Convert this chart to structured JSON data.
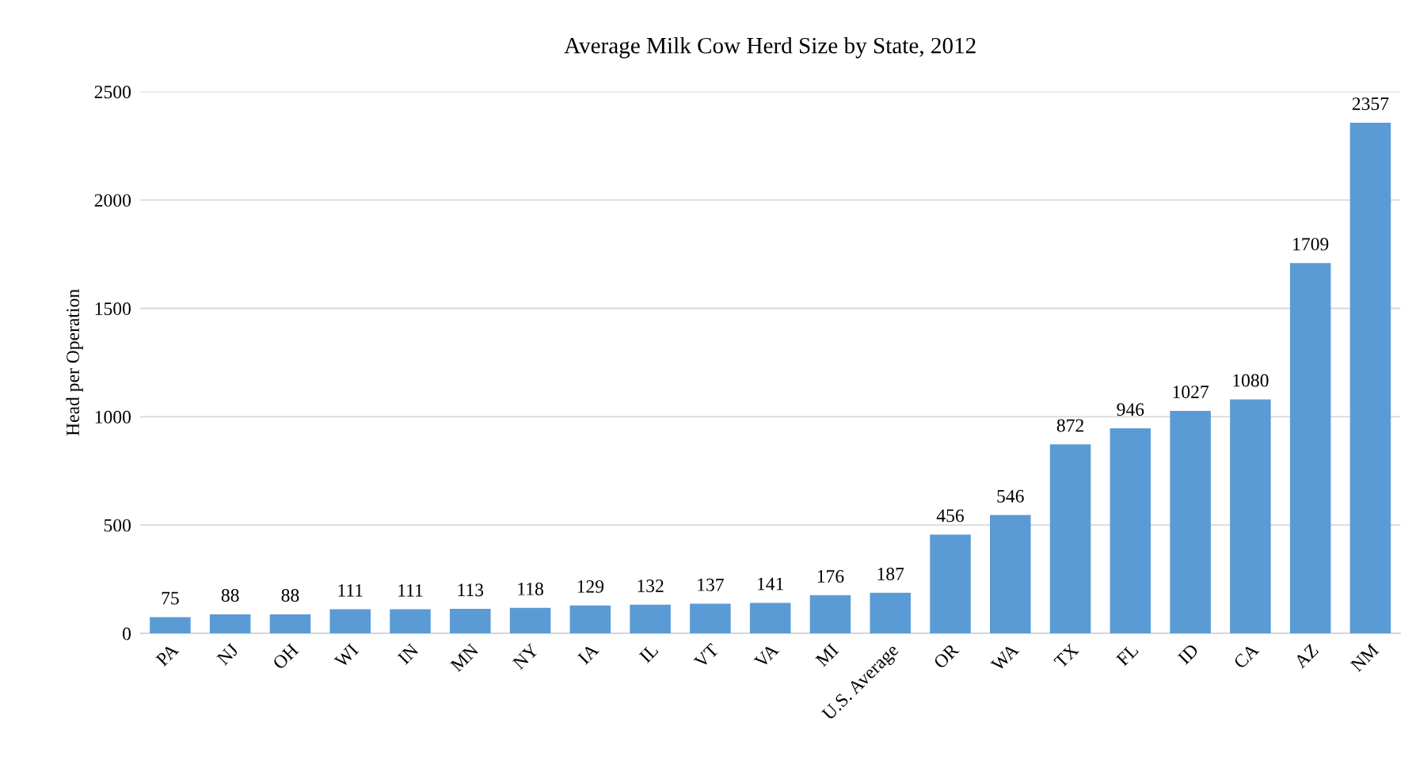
{
  "chart_data": {
    "type": "bar",
    "title": "Average Milk Cow Herd Size by State, 2012",
    "ylabel": "Head per Operation",
    "categories": [
      "PA",
      "NJ",
      "OH",
      "WI",
      "IN",
      "MN",
      "NY",
      "IA",
      "IL",
      "VT",
      "VA",
      "MI",
      "U.S. Average",
      "OR",
      "WA",
      "TX",
      "FL",
      "ID",
      "CA",
      "AZ",
      "NM"
    ],
    "values": [
      75,
      88,
      88,
      111,
      111,
      113,
      118,
      129,
      132,
      137,
      141,
      176,
      187,
      456,
      546,
      872,
      946,
      1027,
      1080,
      1709,
      2357
    ],
    "color": "#5b9bd5",
    "ylim": [
      0,
      2500
    ],
    "yticks": [
      0,
      500,
      1000,
      1500,
      2000,
      2500
    ],
    "grid": "y",
    "data_labels": true
  }
}
